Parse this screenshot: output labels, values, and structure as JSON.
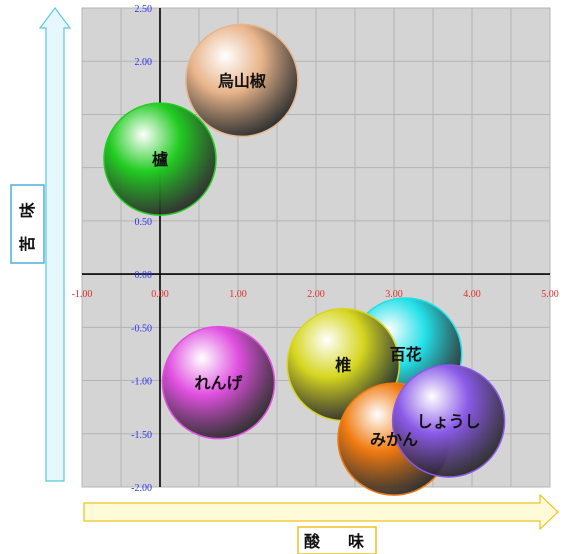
{
  "chart_data": {
    "type": "bubble",
    "title": "",
    "xlabel": "酸　味",
    "ylabel": "苦 味",
    "xlim": [
      -1.0,
      5.0
    ],
    "ylim": [
      -2.0,
      2.5
    ],
    "x_ticks": [
      "-1.00",
      "0.00",
      "1.00",
      "2.00",
      "3.00",
      "4.00",
      "5.00"
    ],
    "y_ticks": [
      "2.50",
      "2.00",
      "1.50",
      "1.00",
      "0.50",
      "0.00",
      "-0.50",
      "-1.00",
      "-1.50",
      "-2.00"
    ],
    "grid": true,
    "bubbles": [
      {
        "name": "烏山椒",
        "x": 1.05,
        "y": 1.82,
        "color": "#e8b48a"
      },
      {
        "name": "櫨",
        "x": 0.0,
        "y": 1.08,
        "color": "#22cc22"
      },
      {
        "name": "百花",
        "x": 3.15,
        "y": -0.75,
        "color": "#22e0e8"
      },
      {
        "name": "れんげ",
        "x": 0.75,
        "y": -1.02,
        "color": "#e050e0"
      },
      {
        "name": "椎",
        "x": 2.35,
        "y": -0.85,
        "color": "#d6d620"
      },
      {
        "name": "みかん",
        "x": 3.0,
        "y": -1.55,
        "color": "#f07a10"
      },
      {
        "name": "しょうし",
        "x": 3.7,
        "y": -1.38,
        "color": "#8a5ae8"
      }
    ]
  }
}
